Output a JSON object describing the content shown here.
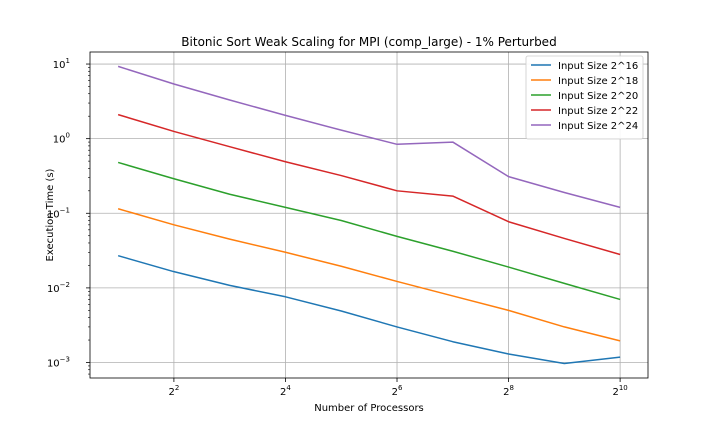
{
  "chart_data": {
    "type": "line",
    "title": "Bitonic Sort Weak Scaling for MPI (comp_large) - 1% Perturbed",
    "xlabel": "Number of Processors",
    "ylabel": "Execution Time (s)",
    "xscale": "log2",
    "yscale": "log10",
    "xlim": [
      1.41,
      1448
    ],
    "ylim": [
      0.00062,
      14.5
    ],
    "grid": true,
    "legend_position": "top-right",
    "x": [
      2,
      4,
      8,
      16,
      32,
      64,
      128,
      256,
      512,
      1024
    ],
    "xticks": [
      {
        "value": 4,
        "base": "2",
        "exp": "2"
      },
      {
        "value": 16,
        "base": "2",
        "exp": "4"
      },
      {
        "value": 64,
        "base": "2",
        "exp": "6"
      },
      {
        "value": 256,
        "base": "2",
        "exp": "8"
      },
      {
        "value": 1024,
        "base": "2",
        "exp": "10"
      }
    ],
    "yticks": [
      {
        "value": 0.001,
        "base": "10",
        "exp": "−3"
      },
      {
        "value": 0.01,
        "base": "10",
        "exp": "−2"
      },
      {
        "value": 0.1,
        "base": "10",
        "exp": "−1"
      },
      {
        "value": 1,
        "base": "10",
        "exp": "0"
      },
      {
        "value": 10,
        "base": "10",
        "exp": "1"
      }
    ],
    "series": [
      {
        "name": "Input Size 2^16",
        "color": "#1f77b4",
        "values": [
          0.027,
          0.0165,
          0.0108,
          0.0076,
          0.0049,
          0.003,
          0.0019,
          0.0013,
          0.00097,
          0.00118
        ]
      },
      {
        "name": "Input Size 2^18",
        "color": "#ff7f0e",
        "values": [
          0.115,
          0.07,
          0.045,
          0.03,
          0.0195,
          0.0122,
          0.0078,
          0.005,
          0.003,
          0.00195
        ]
      },
      {
        "name": "Input Size 2^20",
        "color": "#2ca02c",
        "values": [
          0.48,
          0.29,
          0.18,
          0.12,
          0.08,
          0.049,
          0.031,
          0.019,
          0.0115,
          0.007
        ]
      },
      {
        "name": "Input Size 2^22",
        "color": "#d62728",
        "values": [
          2.1,
          1.25,
          0.78,
          0.49,
          0.32,
          0.2,
          0.17,
          0.077,
          0.046,
          0.028
        ]
      },
      {
        "name": "Input Size 2^24",
        "color": "#9467bd",
        "values": [
          9.3,
          5.4,
          3.3,
          2.05,
          1.3,
          0.84,
          0.9,
          0.31,
          0.19,
          0.12
        ]
      }
    ]
  }
}
